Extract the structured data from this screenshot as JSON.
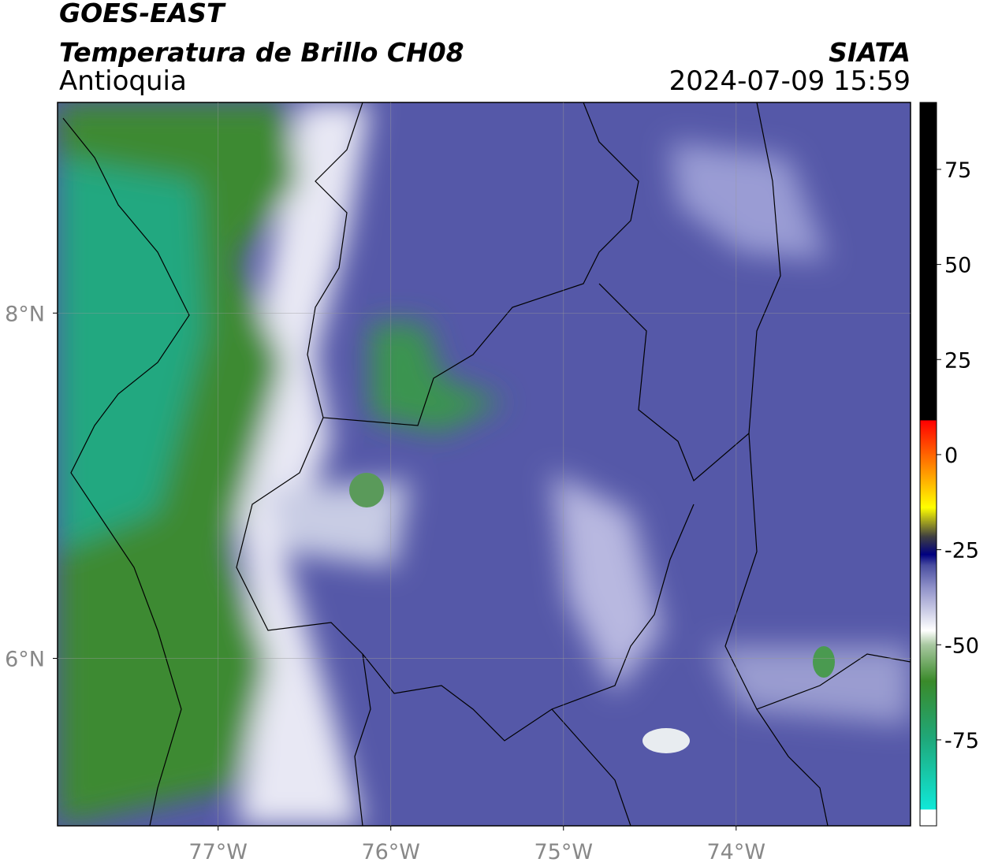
{
  "title": "GOES-EAST",
  "subtitle": "Temperatura de Brillo CH08",
  "region": "Antioquia",
  "source": "SIATA",
  "timestamp": "2024-07-09 15:59",
  "map": {
    "xlim": [
      -77.93,
      -72.99
    ],
    "ylim": [
      5.03,
      9.22
    ],
    "xticks": [
      {
        "value": -77,
        "label": "77°W"
      },
      {
        "value": -76,
        "label": "76°W"
      },
      {
        "value": -75,
        "label": "75°W"
      },
      {
        "value": -74,
        "label": "74°W"
      }
    ],
    "yticks": [
      {
        "value": 8,
        "label": "8°N"
      },
      {
        "value": 6,
        "label": "6°N"
      }
    ],
    "grid": true
  },
  "colorbar": {
    "clim": [
      -97.6,
      92.6
    ],
    "ticks": [
      75,
      50,
      25,
      0,
      -25,
      -50,
      -75
    ]
  }
}
